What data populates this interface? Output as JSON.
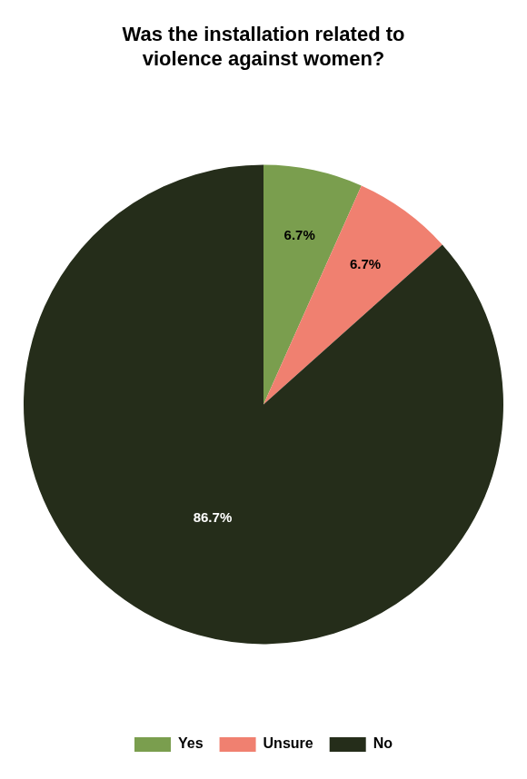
{
  "chart_data": {
    "type": "pie",
    "title": "Was the installation related to\nviolence against women?",
    "categories": [
      "Yes",
      "Unsure",
      "No"
    ],
    "values": [
      6.7,
      6.7,
      86.7
    ],
    "value_labels": [
      "6.7%",
      "6.7%",
      "86.7%"
    ],
    "colors": [
      "#7a9e4e",
      "#f08070",
      "#252d1a"
    ],
    "legend": "bottom",
    "data_labels": true
  }
}
